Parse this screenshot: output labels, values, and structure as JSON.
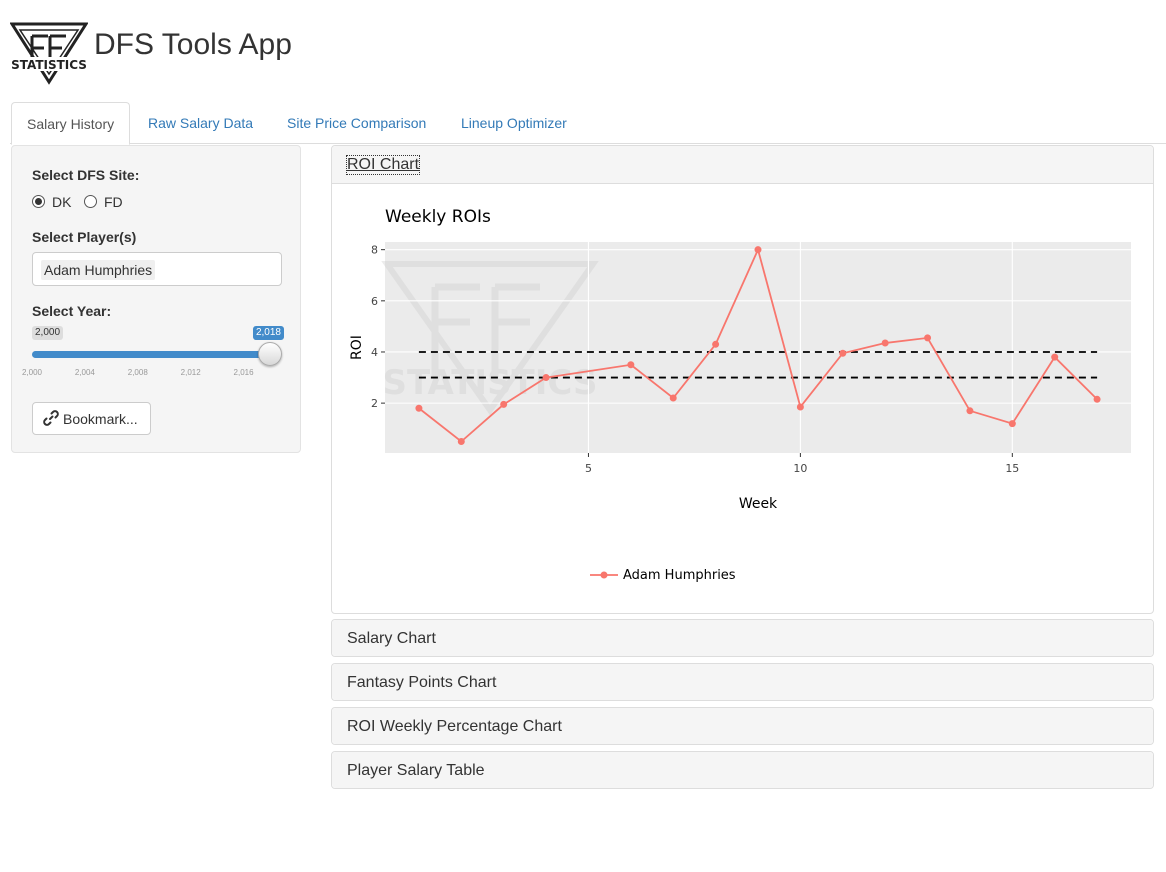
{
  "app": {
    "title": "DFS Tools App",
    "logo_text": "STATISTICS"
  },
  "tabs": [
    {
      "label": "Salary History",
      "active": true
    },
    {
      "label": "Raw Salary Data",
      "active": false
    },
    {
      "label": "Site Price Comparison",
      "active": false
    },
    {
      "label": "Lineup Optimizer",
      "active": false
    }
  ],
  "sidebar": {
    "site_label": "Select DFS Site:",
    "site_options": [
      {
        "label": "DK",
        "checked": true
      },
      {
        "label": "FD",
        "checked": false
      }
    ],
    "player_label": "Select Player(s)",
    "selected_player": "Adam Humphries",
    "year_label": "Select Year:",
    "year_slider": {
      "min": 2000,
      "max": 2018,
      "from": 2000,
      "to": 2018,
      "from_label": "2,000",
      "to_label": "2,018",
      "ticks": [
        "2,000",
        "2,004",
        "2,008",
        "2,012",
        "2,016"
      ]
    },
    "bookmark_label": "Bookmark..."
  },
  "panels": [
    {
      "title": "ROI Chart",
      "expanded": true
    },
    {
      "title": "Salary Chart",
      "expanded": false
    },
    {
      "title": "Fantasy Points Chart",
      "expanded": false
    },
    {
      "title": "ROI Weekly Percentage Chart",
      "expanded": false
    },
    {
      "title": "Player Salary Table",
      "expanded": false
    }
  ],
  "colors": {
    "accent": "#337ab7",
    "slider": "#428bca",
    "series": "#F8766D",
    "plot_bg": "#EBEBEB"
  },
  "chart_data": {
    "type": "line",
    "title": "Weekly ROIs",
    "xlabel": "Week",
    "ylabel": "ROI",
    "xlim": [
      0.2,
      17.8
    ],
    "ylim": [
      0.05,
      8.3
    ],
    "x_ticks": [
      5,
      10,
      15
    ],
    "y_ticks": [
      2,
      4,
      6,
      8
    ],
    "grid": true,
    "legend_position": "bottom",
    "series": [
      {
        "name": "Adam Humphries",
        "color": "#F8766D",
        "x": [
          1,
          2,
          3,
          4,
          6,
          7,
          8,
          9,
          10,
          11,
          12,
          13,
          14,
          15,
          16,
          17
        ],
        "y": [
          1.8,
          0.5,
          1.95,
          3.0,
          3.5,
          2.2,
          4.3,
          8.0,
          1.85,
          3.95,
          4.35,
          4.55,
          1.7,
          1.2,
          3.8,
          2.15
        ]
      }
    ],
    "reference_lines": [
      {
        "y": 4.0,
        "x_from": 1,
        "x_to": 17,
        "style": "dashed"
      },
      {
        "y": 3.0,
        "x_from": 1,
        "x_to": 17,
        "style": "dashed"
      }
    ]
  }
}
